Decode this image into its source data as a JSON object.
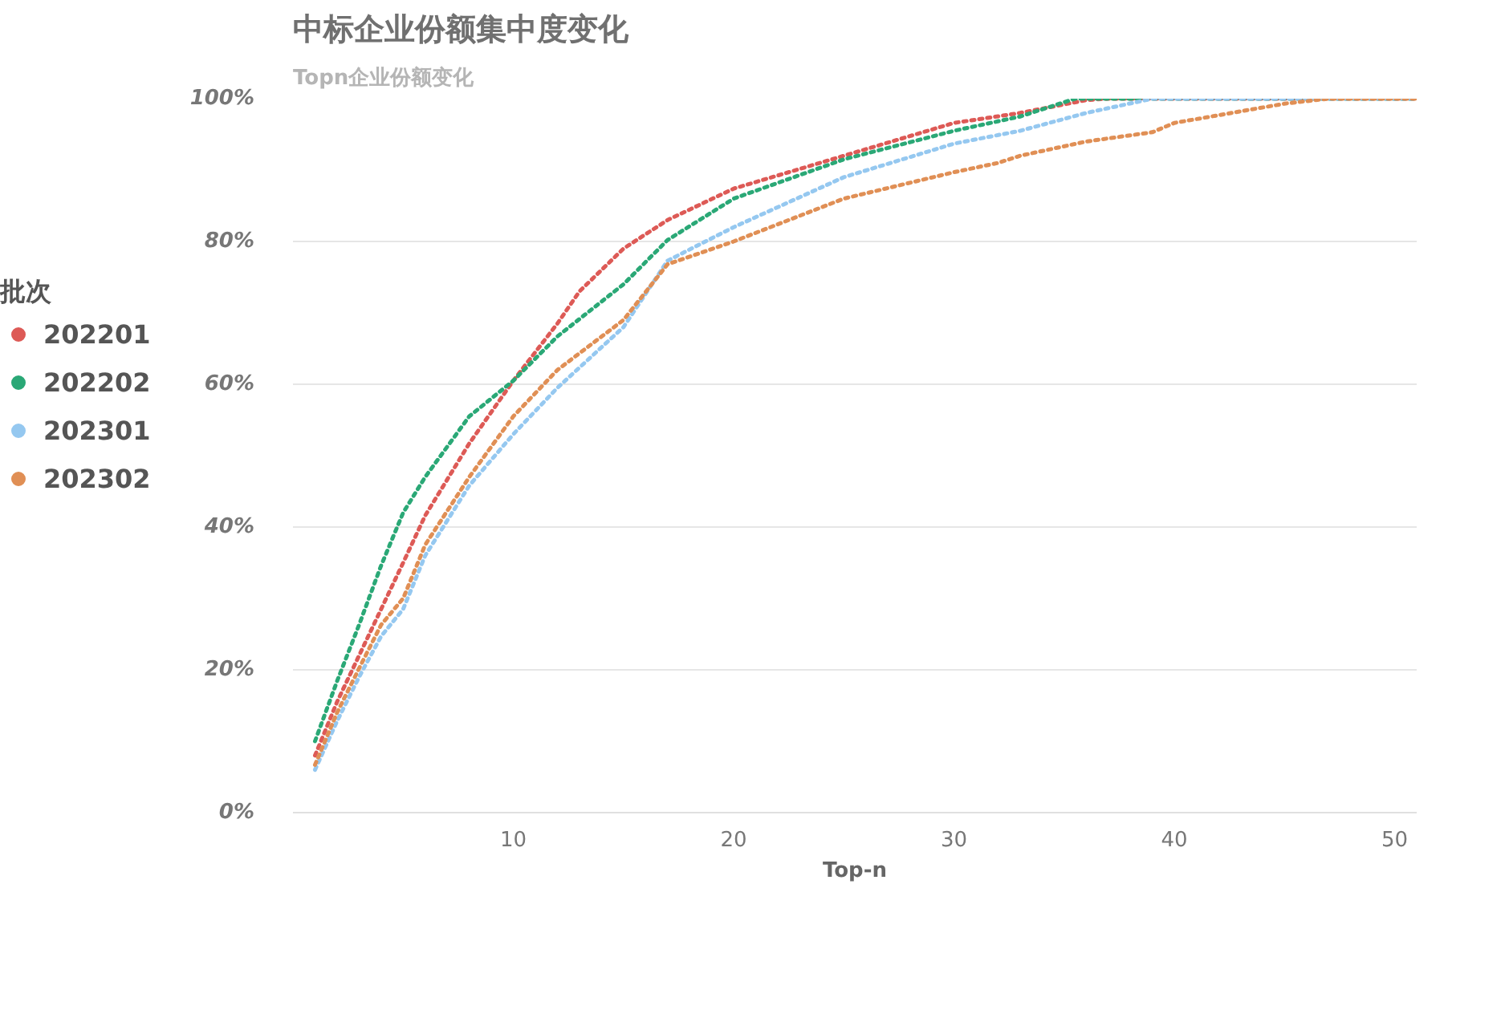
{
  "chart_data": {
    "type": "line",
    "title": "中标企业份额集中度变化",
    "subtitle": "Topn企业份额变化",
    "xlabel": "Top-n",
    "legend_title": "批次",
    "legend": "left",
    "grid": "y",
    "line_style": "dotted",
    "marker": "none",
    "xlim": [
      0,
      51
    ],
    "xticks": [
      10,
      20,
      30,
      40,
      50
    ],
    "ylim": [
      0,
      100
    ],
    "yticks": [
      {
        "value": 0,
        "label": "0%"
      },
      {
        "value": 20,
        "label": "20%"
      },
      {
        "value": 40,
        "label": "40%"
      },
      {
        "value": 60,
        "label": "60%"
      },
      {
        "value": 80,
        "label": "80%"
      },
      {
        "value": 100,
        "label": "100%"
      }
    ],
    "series": [
      {
        "name": "202201",
        "color": "#dd5a56",
        "x": [
          1,
          2,
          3,
          4,
          5,
          6,
          8,
          10,
          12,
          13,
          15,
          17,
          20,
          25,
          30,
          33,
          36,
          37,
          40,
          45,
          51
        ],
        "values": [
          8,
          15.5,
          22,
          28.5,
          35,
          41.6,
          51.7,
          60.5,
          68.5,
          73,
          79,
          83,
          87.4,
          92,
          96.6,
          98,
          99.8,
          100,
          100,
          100,
          100
        ]
      },
      {
        "name": "202202",
        "color": "#2aa876",
        "x": [
          1,
          2,
          3,
          4,
          5,
          6,
          8,
          10,
          12,
          15,
          17,
          20,
          25,
          30,
          33,
          35.5,
          36,
          40,
          45,
          51
        ],
        "values": [
          10,
          18.4,
          26.3,
          34.6,
          42,
          47,
          55.5,
          60.5,
          66.7,
          74,
          80.2,
          86,
          91.5,
          95.5,
          97.5,
          100,
          100,
          100,
          100,
          100
        ]
      },
      {
        "name": "202301",
        "color": "#95c8f0",
        "x": [
          1,
          2,
          3,
          4,
          5,
          6,
          8,
          10,
          12,
          15,
          17,
          20,
          25,
          30,
          33,
          36,
          39,
          45,
          51
        ],
        "values": [
          6,
          12.8,
          19,
          24.7,
          28.5,
          36,
          45.8,
          53,
          59.5,
          68,
          77.3,
          82,
          89,
          93.7,
          95.5,
          98,
          100,
          100,
          100
        ]
      },
      {
        "name": "202302",
        "color": "#e08f55",
        "x": [
          1,
          2,
          3,
          4,
          5,
          6,
          8,
          10,
          12,
          15,
          17,
          20,
          25,
          30,
          32,
          33,
          36,
          39,
          40,
          45,
          47,
          51
        ],
        "values": [
          6.7,
          14,
          20.2,
          26.3,
          30,
          37.5,
          47,
          55.5,
          62,
          69,
          76.8,
          80,
          86,
          89.7,
          91,
          92,
          94,
          95.3,
          96.6,
          99.3,
          100,
          100
        ]
      }
    ]
  }
}
